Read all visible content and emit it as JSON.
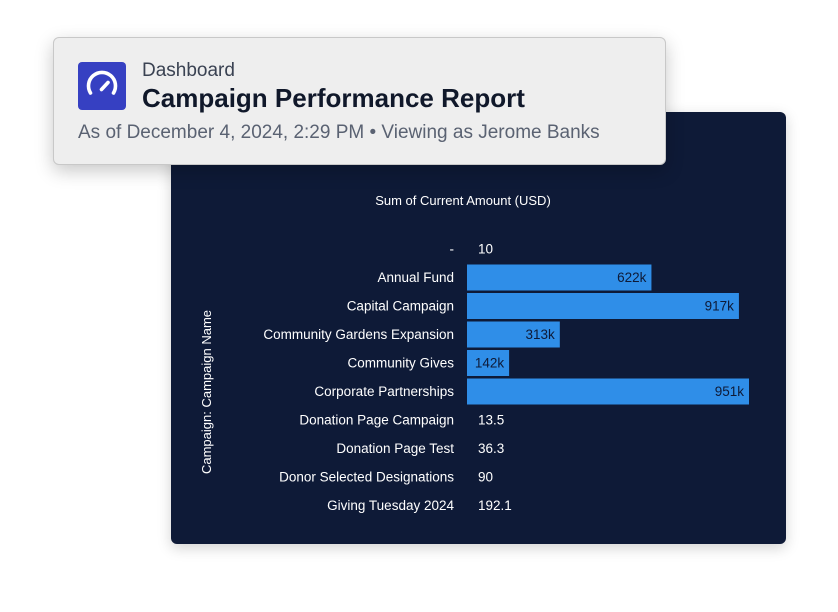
{
  "header": {
    "icon": "speedometer-icon",
    "subtitle": "Dashboard",
    "title": "Campaign Performance Report",
    "meta": "As of December 4, 2024, 2:29 PM • Viewing as Jerome Banks"
  },
  "colors": {
    "panel_bg": "#0e1a37",
    "bar": "#2f8ee8",
    "icon_bg": "#3640c2"
  },
  "chart_data": {
    "type": "bar",
    "orientation": "horizontal",
    "title": "Sum of Current Amount (USD)",
    "ylabel": "Campaign: Campaign Name",
    "xlabel": "",
    "xlim": [
      0,
      951000
    ],
    "categories": [
      "-",
      "Annual Fund",
      "Capital Campaign",
      "Community Gardens Expansion",
      "Community Gives",
      "Corporate Partnerships",
      "Donation Page Campaign",
      "Donation Page Test",
      "Donor Selected Designations",
      "Giving Tuesday 2024"
    ],
    "values": [
      10,
      622000,
      917000,
      313000,
      142000,
      951000,
      13.5,
      36.3,
      90,
      192.1
    ],
    "labels": [
      "10",
      "622k",
      "917k",
      "313k",
      "142k",
      "951k",
      "13.5",
      "36.3",
      "90",
      "192.1"
    ]
  }
}
